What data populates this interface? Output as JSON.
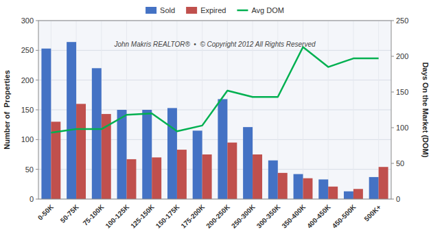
{
  "chart_data": {
    "type": "bar",
    "categories": [
      "0-50K",
      "50-75K",
      "75-100K",
      "100-125K",
      "125-150K",
      "150-175K",
      "175-200K",
      "200-250K",
      "250-300K",
      "300-350K",
      "350-400K",
      "400-450K",
      "450-500K",
      "500K+"
    ],
    "series": [
      {
        "name": "Sold",
        "color": "#4472C4",
        "values": [
          253,
          264,
          220,
          150,
          150,
          153,
          115,
          168,
          121,
          65,
          42,
          33,
          13,
          37
        ]
      },
      {
        "name": "Expired",
        "color": "#C0504D",
        "values": [
          130,
          160,
          143,
          67,
          70,
          83,
          75,
          95,
          75,
          44,
          35,
          21,
          17,
          54
        ]
      },
      {
        "name": "Avg DOM",
        "color": "#00B050",
        "type": "line",
        "axis": "y2",
        "values": [
          93,
          98,
          98,
          118,
          120,
          95,
          103,
          152,
          143,
          143,
          213,
          185,
          197,
          197
        ]
      }
    ],
    "ylabel": "Number of  Properties",
    "y2label": "Days On the Market (DOM)",
    "ylim": [
      0,
      300
    ],
    "yticks": [
      0,
      50,
      100,
      150,
      200,
      250,
      300
    ],
    "y2lim": [
      0,
      250
    ],
    "y2ticks": [
      0,
      50,
      100,
      150,
      200,
      250
    ],
    "grid": true,
    "legend": "top",
    "annotation": "John Makris REALTOR®  •  © Copyright 2012 All Rights Reserved"
  }
}
